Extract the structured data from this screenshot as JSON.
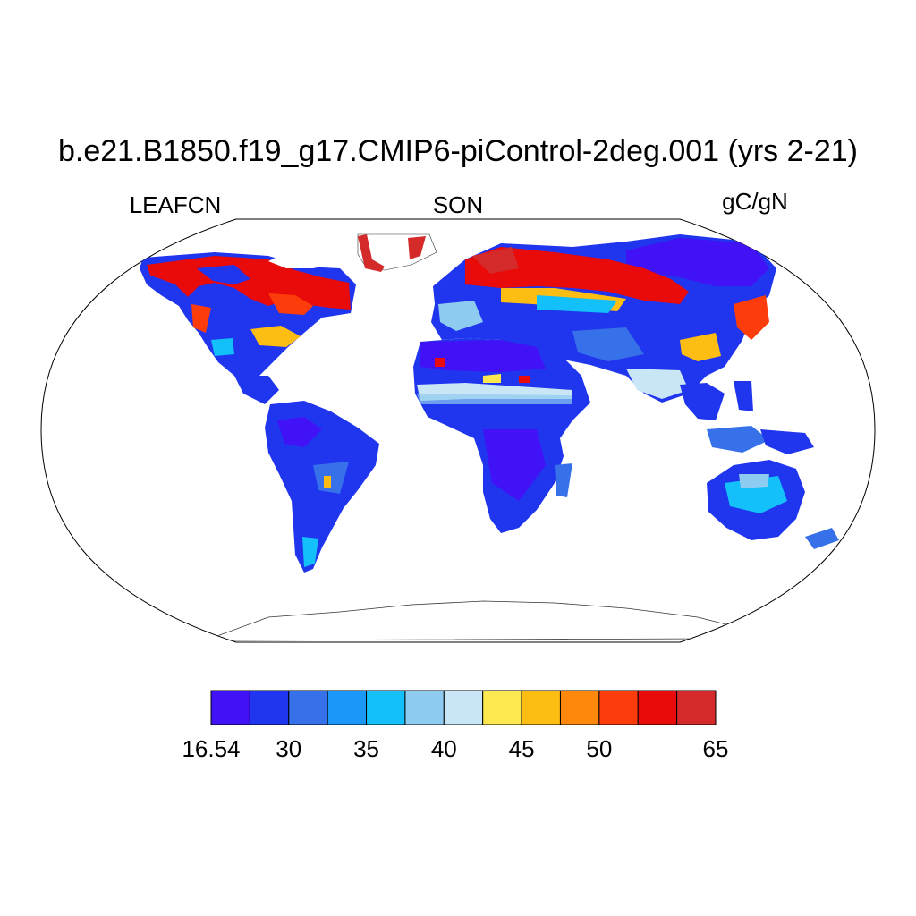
{
  "title": "b.e21.B1850.f19_g17.CMIP6-piControl-2deg.001 (yrs 2-21)",
  "left_label": "LEAFCN",
  "center_label": "SON",
  "right_label": "gC/gN",
  "colorbar": {
    "colors": [
      "#4212f7",
      "#2035ee",
      "#3671e9",
      "#1b96f9",
      "#13c0f9",
      "#8ecbf0",
      "#c9e6f7",
      "#fde94f",
      "#fdbd13",
      "#fd880b",
      "#fc3c0b",
      "#e90a0a",
      "#d42a2a"
    ],
    "tick_labels": [
      "16.54",
      "30",
      "35",
      "40",
      "45",
      "50",
      "65"
    ],
    "tick_box_index": [
      0,
      2,
      4,
      6,
      8,
      10,
      13
    ]
  }
}
